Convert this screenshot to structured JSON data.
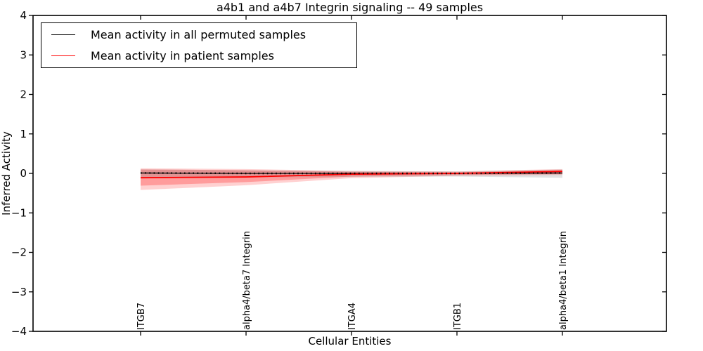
{
  "chart_data": {
    "type": "line",
    "title": "a4b1 and a4b7 Integrin signaling -- 49 samples",
    "xlabel": "Cellular Entities",
    "ylabel": "Inferred Activity",
    "ylim": [
      -4,
      4
    ],
    "ytick_values": [
      4,
      3,
      2,
      1,
      0,
      -1,
      -2,
      -3,
      -4
    ],
    "ytick_labels": [
      "4",
      "3",
      "2",
      "1",
      "0",
      "−1",
      "−2",
      "−3",
      "−4"
    ],
    "categories": [
      "ITGB7",
      "alpha4/beta7 Integrin",
      "ITGA4",
      "ITGB1",
      "alpha4/beta1 Integrin"
    ],
    "grid": false,
    "background": "#ffffff",
    "legend": {
      "position": "upper left",
      "entries": [
        {
          "label": "Mean activity in all permuted samples",
          "color": "#000000"
        },
        {
          "label": "Mean activity in patient samples",
          "color": "#ff0000"
        }
      ]
    },
    "series": [
      {
        "name": "Mean activity in all permuted samples",
        "color": "#000000",
        "line_style": "solid",
        "line_width": 1.3,
        "values": [
          0.01,
          0.0,
          0.0,
          0.0,
          0.01
        ]
      },
      {
        "name": "Mean activity in patient samples",
        "color": "#ff0000",
        "line_style": "solid",
        "line_width": 1.8,
        "values": [
          -0.11,
          -0.09,
          -0.02,
          0.0,
          0.05
        ]
      }
    ],
    "bands": [
      {
        "name": "patient-std-outer",
        "color": "#ff0000",
        "opacity": 0.18,
        "upper": [
          0.13,
          0.11,
          0.06,
          0.05,
          0.11
        ],
        "lower": [
          -0.42,
          -0.3,
          -0.12,
          -0.06,
          -0.04
        ]
      },
      {
        "name": "patient-std-inner",
        "color": "#ff0000",
        "opacity": 0.25,
        "upper": [
          0.1,
          0.08,
          0.04,
          0.03,
          0.09
        ],
        "lower": [
          -0.31,
          -0.22,
          -0.08,
          -0.04,
          -0.02
        ]
      },
      {
        "name": "permuted-std",
        "color": "#777777",
        "opacity": 0.22,
        "upper": [
          0.1,
          0.08,
          0.06,
          0.05,
          0.1
        ],
        "lower": [
          -0.12,
          -0.1,
          -0.09,
          -0.08,
          -0.11
        ]
      }
    ],
    "zero_line": {
      "style": "dotted",
      "color": "#000000",
      "y": 0
    }
  }
}
